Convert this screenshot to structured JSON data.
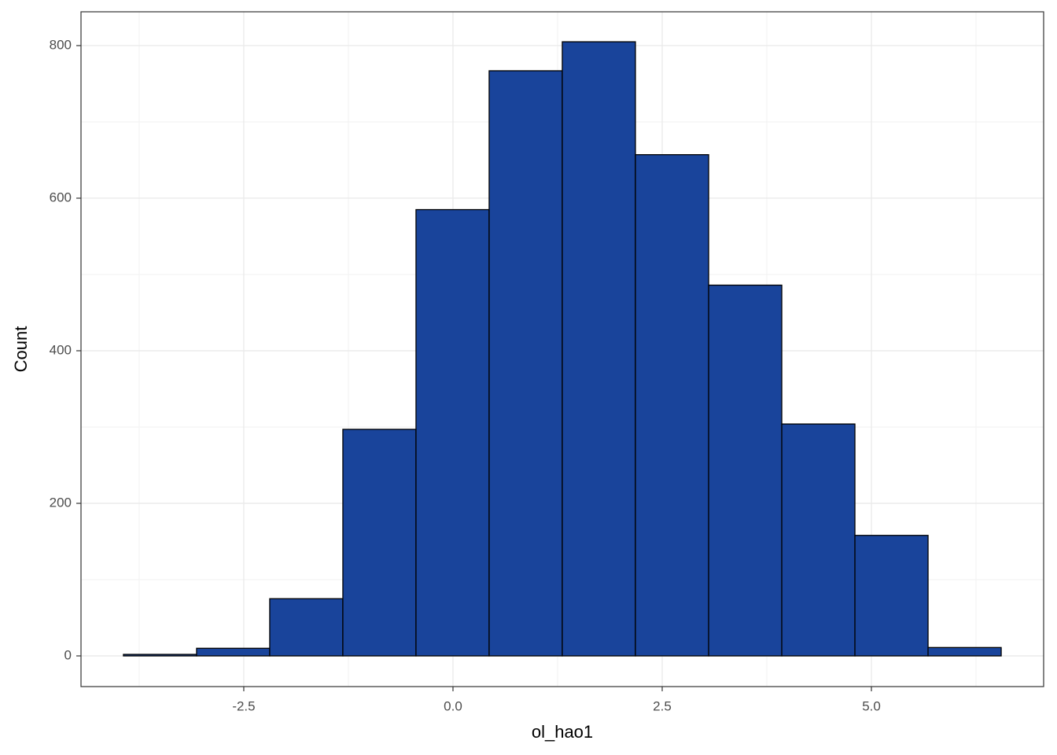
{
  "chart_data": {
    "type": "histogram",
    "x_label": "ol_hao1",
    "y_label": "Count",
    "bins": [
      -3.938,
      -3.064,
      -2.19,
      -1.316,
      -0.442,
      0.432,
      1.306,
      2.18,
      3.055,
      3.929,
      4.803,
      5.677,
      6.551
    ],
    "values": [
      2,
      10,
      75,
      297,
      585,
      767,
      805,
      657,
      486,
      304,
      158,
      11
    ],
    "color": "#19449b",
    "edge_color": "#000000",
    "xlim": [
      -4.445,
      7.058
    ],
    "ylim": [
      -40.2,
      844.3
    ],
    "xticks": [
      -2.5,
      {
        "value": 0,
        "label": "0.0"
      },
      2.5,
      {
        "value": 5,
        "label": "5.0"
      }
    ],
    "yticks": [
      0,
      200,
      400,
      600,
      800
    ],
    "xminor": [
      -3.75,
      -1.25,
      1.25,
      3.75,
      6.25
    ],
    "yminor": [
      100,
      300,
      500,
      700
    ],
    "grid": true
  }
}
